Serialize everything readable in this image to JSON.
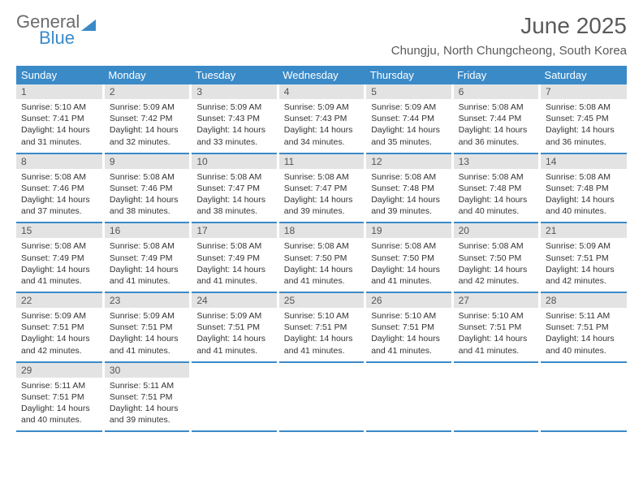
{
  "brand": {
    "part1": "General",
    "part2": "Blue"
  },
  "title": "June 2025",
  "location": "Chungju, North Chungcheong, South Korea",
  "colors": {
    "header_bg": "#3a8ac8",
    "header_text": "#ffffff",
    "daynum_bg": "#e3e3e3",
    "cell_border": "#3a8ac8",
    "text": "#333333",
    "title_text": "#5a5a5a",
    "brand_gray": "#6b6b6b",
    "brand_blue": "#3a8ac8",
    "background": "#ffffff"
  },
  "typography": {
    "month_title_size": 28,
    "location_size": 15,
    "weekday_size": 13,
    "daynum_size": 12,
    "body_size": 10.5
  },
  "layout": {
    "columns": 7,
    "rows": 5
  },
  "weekdays": [
    "Sunday",
    "Monday",
    "Tuesday",
    "Wednesday",
    "Thursday",
    "Friday",
    "Saturday"
  ],
  "days": [
    {
      "n": "1",
      "sr": "Sunrise: 5:10 AM",
      "ss": "Sunset: 7:41 PM",
      "d1": "Daylight: 14 hours",
      "d2": "and 31 minutes."
    },
    {
      "n": "2",
      "sr": "Sunrise: 5:09 AM",
      "ss": "Sunset: 7:42 PM",
      "d1": "Daylight: 14 hours",
      "d2": "and 32 minutes."
    },
    {
      "n": "3",
      "sr": "Sunrise: 5:09 AM",
      "ss": "Sunset: 7:43 PM",
      "d1": "Daylight: 14 hours",
      "d2": "and 33 minutes."
    },
    {
      "n": "4",
      "sr": "Sunrise: 5:09 AM",
      "ss": "Sunset: 7:43 PM",
      "d1": "Daylight: 14 hours",
      "d2": "and 34 minutes."
    },
    {
      "n": "5",
      "sr": "Sunrise: 5:09 AM",
      "ss": "Sunset: 7:44 PM",
      "d1": "Daylight: 14 hours",
      "d2": "and 35 minutes."
    },
    {
      "n": "6",
      "sr": "Sunrise: 5:08 AM",
      "ss": "Sunset: 7:44 PM",
      "d1": "Daylight: 14 hours",
      "d2": "and 36 minutes."
    },
    {
      "n": "7",
      "sr": "Sunrise: 5:08 AM",
      "ss": "Sunset: 7:45 PM",
      "d1": "Daylight: 14 hours",
      "d2": "and 36 minutes."
    },
    {
      "n": "8",
      "sr": "Sunrise: 5:08 AM",
      "ss": "Sunset: 7:46 PM",
      "d1": "Daylight: 14 hours",
      "d2": "and 37 minutes."
    },
    {
      "n": "9",
      "sr": "Sunrise: 5:08 AM",
      "ss": "Sunset: 7:46 PM",
      "d1": "Daylight: 14 hours",
      "d2": "and 38 minutes."
    },
    {
      "n": "10",
      "sr": "Sunrise: 5:08 AM",
      "ss": "Sunset: 7:47 PM",
      "d1": "Daylight: 14 hours",
      "d2": "and 38 minutes."
    },
    {
      "n": "11",
      "sr": "Sunrise: 5:08 AM",
      "ss": "Sunset: 7:47 PM",
      "d1": "Daylight: 14 hours",
      "d2": "and 39 minutes."
    },
    {
      "n": "12",
      "sr": "Sunrise: 5:08 AM",
      "ss": "Sunset: 7:48 PM",
      "d1": "Daylight: 14 hours",
      "d2": "and 39 minutes."
    },
    {
      "n": "13",
      "sr": "Sunrise: 5:08 AM",
      "ss": "Sunset: 7:48 PM",
      "d1": "Daylight: 14 hours",
      "d2": "and 40 minutes."
    },
    {
      "n": "14",
      "sr": "Sunrise: 5:08 AM",
      "ss": "Sunset: 7:48 PM",
      "d1": "Daylight: 14 hours",
      "d2": "and 40 minutes."
    },
    {
      "n": "15",
      "sr": "Sunrise: 5:08 AM",
      "ss": "Sunset: 7:49 PM",
      "d1": "Daylight: 14 hours",
      "d2": "and 41 minutes."
    },
    {
      "n": "16",
      "sr": "Sunrise: 5:08 AM",
      "ss": "Sunset: 7:49 PM",
      "d1": "Daylight: 14 hours",
      "d2": "and 41 minutes."
    },
    {
      "n": "17",
      "sr": "Sunrise: 5:08 AM",
      "ss": "Sunset: 7:49 PM",
      "d1": "Daylight: 14 hours",
      "d2": "and 41 minutes."
    },
    {
      "n": "18",
      "sr": "Sunrise: 5:08 AM",
      "ss": "Sunset: 7:50 PM",
      "d1": "Daylight: 14 hours",
      "d2": "and 41 minutes."
    },
    {
      "n": "19",
      "sr": "Sunrise: 5:08 AM",
      "ss": "Sunset: 7:50 PM",
      "d1": "Daylight: 14 hours",
      "d2": "and 41 minutes."
    },
    {
      "n": "20",
      "sr": "Sunrise: 5:08 AM",
      "ss": "Sunset: 7:50 PM",
      "d1": "Daylight: 14 hours",
      "d2": "and 42 minutes."
    },
    {
      "n": "21",
      "sr": "Sunrise: 5:09 AM",
      "ss": "Sunset: 7:51 PM",
      "d1": "Daylight: 14 hours",
      "d2": "and 42 minutes."
    },
    {
      "n": "22",
      "sr": "Sunrise: 5:09 AM",
      "ss": "Sunset: 7:51 PM",
      "d1": "Daylight: 14 hours",
      "d2": "and 42 minutes."
    },
    {
      "n": "23",
      "sr": "Sunrise: 5:09 AM",
      "ss": "Sunset: 7:51 PM",
      "d1": "Daylight: 14 hours",
      "d2": "and 41 minutes."
    },
    {
      "n": "24",
      "sr": "Sunrise: 5:09 AM",
      "ss": "Sunset: 7:51 PM",
      "d1": "Daylight: 14 hours",
      "d2": "and 41 minutes."
    },
    {
      "n": "25",
      "sr": "Sunrise: 5:10 AM",
      "ss": "Sunset: 7:51 PM",
      "d1": "Daylight: 14 hours",
      "d2": "and 41 minutes."
    },
    {
      "n": "26",
      "sr": "Sunrise: 5:10 AM",
      "ss": "Sunset: 7:51 PM",
      "d1": "Daylight: 14 hours",
      "d2": "and 41 minutes."
    },
    {
      "n": "27",
      "sr": "Sunrise: 5:10 AM",
      "ss": "Sunset: 7:51 PM",
      "d1": "Daylight: 14 hours",
      "d2": "and 41 minutes."
    },
    {
      "n": "28",
      "sr": "Sunrise: 5:11 AM",
      "ss": "Sunset: 7:51 PM",
      "d1": "Daylight: 14 hours",
      "d2": "and 40 minutes."
    },
    {
      "n": "29",
      "sr": "Sunrise: 5:11 AM",
      "ss": "Sunset: 7:51 PM",
      "d1": "Daylight: 14 hours",
      "d2": "and 40 minutes."
    },
    {
      "n": "30",
      "sr": "Sunrise: 5:11 AM",
      "ss": "Sunset: 7:51 PM",
      "d1": "Daylight: 14 hours",
      "d2": "and 39 minutes."
    }
  ]
}
